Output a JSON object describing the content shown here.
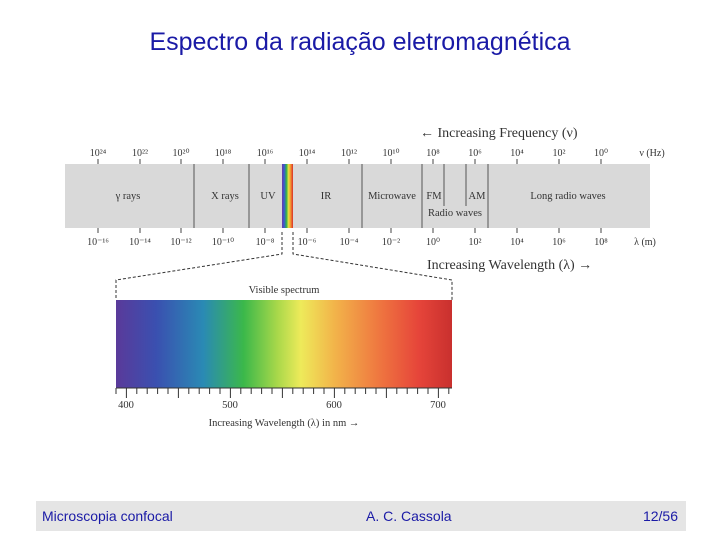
{
  "slide": {
    "title": "Espectro da radiação eletromagnética"
  },
  "diagram": {
    "frequency_axis": {
      "heading": "← Increasing Frequency (ν)",
      "unit": "ν (Hz)",
      "ticks": [
        "10²⁴",
        "10²²",
        "10²⁰",
        "10¹⁸",
        "10¹⁶",
        "10¹⁴",
        "10¹²",
        "10¹⁰",
        "10⁸",
        "10⁶",
        "10⁴",
        "10²",
        "10⁰"
      ]
    },
    "wavelength_axis": {
      "heading": "Increasing Wavelength (λ) →",
      "unit": "λ (m)",
      "ticks": [
        "10⁻¹⁶",
        "10⁻¹⁴",
        "10⁻¹²",
        "10⁻¹⁰",
        "10⁻⁸",
        "10⁻⁶",
        "10⁻⁴",
        "10⁻²",
        "10⁰",
        "10²",
        "10⁴",
        "10⁶",
        "10⁸"
      ]
    },
    "bands": [
      "γ rays",
      "X rays",
      "UV",
      "IR",
      "Microwave",
      "FM",
      "AM",
      "Long radio waves"
    ],
    "radio_label": "Radio waves",
    "visible": {
      "heading": "Visible spectrum",
      "ticks": [
        "400",
        "500",
        "600",
        "700"
      ],
      "axis_label": "Increasing Wavelength (λ) in nm →"
    }
  },
  "footer": {
    "left": "Microscopia confocal",
    "center": "A. C. Cassola",
    "right": "12/56"
  }
}
